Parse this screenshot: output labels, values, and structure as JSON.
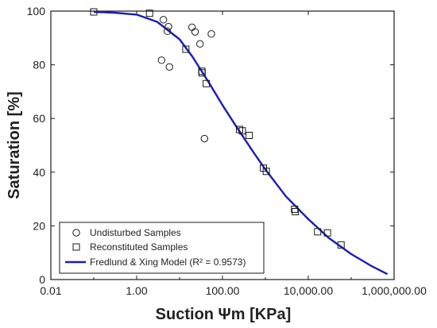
{
  "colors": {
    "model_line": "#1c1cb8",
    "axis": "#1a1a1a",
    "marker": "#1a1a1a"
  },
  "chart_data": {
    "type": "scatter",
    "xlabel": "Suction Ψm [KPa]",
    "ylabel": "Saturation [%]",
    "xscale": "log",
    "xlim": [
      0.01,
      1000000
    ],
    "ylim": [
      0,
      100
    ],
    "x_ticks": [
      {
        "value": 0.01,
        "label": "0.01"
      },
      {
        "value": 1,
        "label": "1.00"
      },
      {
        "value": 100,
        "label": "100.00"
      },
      {
        "value": 10000,
        "label": "10,000.00"
      },
      {
        "value": 1000000,
        "label": "1,000,000.00"
      }
    ],
    "y_ticks": [
      {
        "value": 0,
        "label": "0"
      },
      {
        "value": 20,
        "label": "20"
      },
      {
        "value": 40,
        "label": "40"
      },
      {
        "value": 60,
        "label": "60"
      },
      {
        "value": 80,
        "label": "80"
      },
      {
        "value": 100,
        "label": "100"
      }
    ],
    "grid": false,
    "legend_position": "bottom-left",
    "series": [
      {
        "name": "Undisturbed Samples",
        "marker": "circle",
        "points": [
          {
            "x": 4.2,
            "y": 96.8
          },
          {
            "x": 5.5,
            "y": 94.2
          },
          {
            "x": 5.2,
            "y": 92.5
          },
          {
            "x": 19.5,
            "y": 94.0
          },
          {
            "x": 23,
            "y": 92.3
          },
          {
            "x": 30,
            "y": 87.8
          },
          {
            "x": 55,
            "y": 91.5
          },
          {
            "x": 3.8,
            "y": 81.7
          },
          {
            "x": 5.8,
            "y": 79.2
          },
          {
            "x": 38,
            "y": 52.5
          }
        ]
      },
      {
        "name": "Reconstituted Samples",
        "marker": "square",
        "points": [
          {
            "x": 0.1,
            "y": 99.7
          },
          {
            "x": 2.0,
            "y": 99.2
          },
          {
            "x": 14,
            "y": 85.8
          },
          {
            "x": 33,
            "y": 77.6
          },
          {
            "x": 33.5,
            "y": 77.0
          },
          {
            "x": 42,
            "y": 73.0
          },
          {
            "x": 250,
            "y": 55.9
          },
          {
            "x": 290,
            "y": 55.4
          },
          {
            "x": 420,
            "y": 53.7
          },
          {
            "x": 900,
            "y": 41.5
          },
          {
            "x": 1050,
            "y": 40.3
          },
          {
            "x": 4800,
            "y": 26.2
          },
          {
            "x": 5000,
            "y": 25.3
          },
          {
            "x": 16500,
            "y": 17.8
          },
          {
            "x": 28000,
            "y": 17.4
          },
          {
            "x": 58000,
            "y": 12.9
          }
        ]
      },
      {
        "name": "Fredlund & Xing Model (R² = 0.9573)",
        "marker": "line",
        "points": [
          {
            "x": 0.1,
            "y": 99.7
          },
          {
            "x": 0.3,
            "y": 99.4
          },
          {
            "x": 1,
            "y": 98.7
          },
          {
            "x": 3,
            "y": 96.0
          },
          {
            "x": 10,
            "y": 89.5
          },
          {
            "x": 20,
            "y": 83.0
          },
          {
            "x": 50,
            "y": 73.0
          },
          {
            "x": 100,
            "y": 65.0
          },
          {
            "x": 200,
            "y": 57.5
          },
          {
            "x": 500,
            "y": 48.0
          },
          {
            "x": 1000,
            "y": 41.0
          },
          {
            "x": 3000,
            "y": 31.0
          },
          {
            "x": 10000,
            "y": 22.5
          },
          {
            "x": 30000,
            "y": 15.5
          },
          {
            "x": 100000,
            "y": 9.5
          },
          {
            "x": 300000,
            "y": 5.0
          },
          {
            "x": 700000,
            "y": 2.0
          }
        ]
      }
    ]
  }
}
